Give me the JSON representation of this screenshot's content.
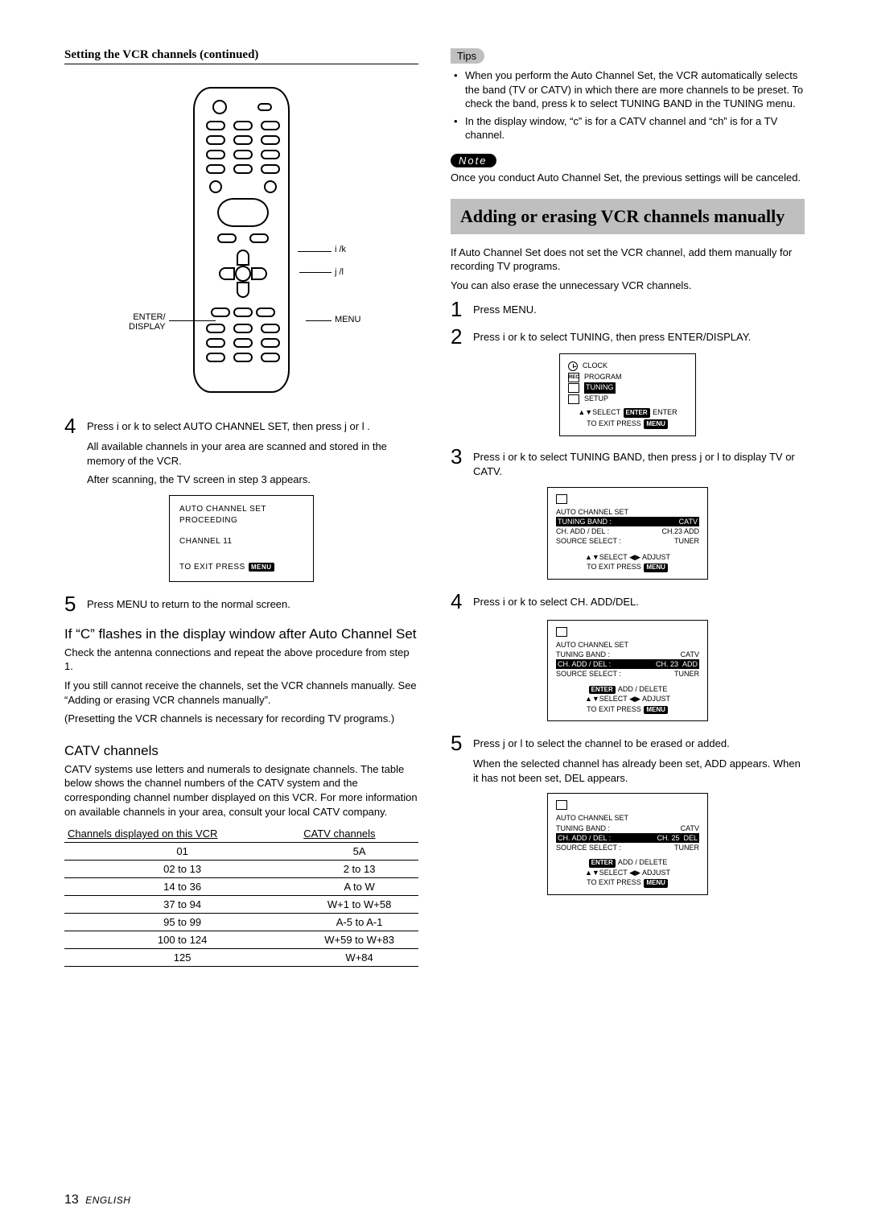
{
  "left": {
    "sectionTitle": "Setting the VCR channels (continued)",
    "remoteLabels": {
      "ik": "i /k",
      "jl": "j /l",
      "menu": "MENU",
      "enter": "ENTER/\nDISPLAY"
    },
    "step4": {
      "num": "4",
      "body": "Press i  or k  to select AUTO CHANNEL SET, then press  j  or l .",
      "sub1": "All available channels in your area are scanned and stored in the memory of the VCR.",
      "sub2": "After scanning, the TV screen in step 3 appears."
    },
    "osd1": {
      "l1": "AUTO  CHANNEL  SET",
      "l2": "PROCEEDING",
      "l3": "CHANNEL  11",
      "l4a": "TO  EXIT  PRESS",
      "l4key": "MENU"
    },
    "step5": {
      "num": "5",
      "body": "Press MENU to return to the normal screen."
    },
    "cflash": {
      "head": "If “C” flashes in the display window after Auto Channel Set",
      "p1": "Check the antenna connections and repeat the above procedure from step 1.",
      "p2": "If you still cannot receive the channels, set the VCR channels manually. See “Adding or erasing VCR channels manually”.",
      "p3": "(Presetting the VCR channels is necessary for recording TV programs.)"
    },
    "catv": {
      "head": "CATV channels",
      "p": "CATV systems use letters and numerals to designate channels. The table below shows the channel numbers of the CATV system and the corresponding channel number displayed on this VCR. For more information on available channels in your area, consult your local CATV company.",
      "th1": "Channels displayed on this VCR",
      "th2": "CATV channels",
      "rows": [
        [
          "01",
          "5A"
        ],
        [
          "02 to 13",
          "2 to 13"
        ],
        [
          "14 to 36",
          "A to W"
        ],
        [
          "37 to 94",
          "W+1 to W+58"
        ],
        [
          "95 to 99",
          "A-5 to A-1"
        ],
        [
          "100 to 124",
          "W+59 to W+83"
        ],
        [
          "125",
          "W+84"
        ]
      ]
    }
  },
  "right": {
    "tipsLabel": "Tips",
    "tips": [
      "When you perform the Auto Channel Set, the VCR automatically selects the band (TV or CATV) in which there are more channels to be preset. To check the band, press k to select TUNING BAND in the TUNING menu.",
      "In the display window, “c” is for a CATV channel and “ch” is for a TV channel."
    ],
    "noteLabel": "Note",
    "note": "Once you conduct Auto Channel Set, the previous settings will be canceled.",
    "banner": "Adding or erasing VCR channels manually",
    "intro1": "If Auto Channel Set does not set the VCR channel, add them manually for recording TV programs.",
    "intro2": "You can also erase the unnecessary VCR channels.",
    "s1": {
      "num": "1",
      "body": "Press MENU."
    },
    "s2": {
      "num": "2",
      "body": "Press i  or k  to select TUNING, then press ENTER/DISPLAY."
    },
    "menuOsd": {
      "items": [
        "CLOCK",
        "PROGRAM",
        "TUNING",
        "SETUP"
      ],
      "foot1a": "SELECT",
      "foot1key1": "ENTER",
      "foot1b": "ENTER",
      "foot2a": "TO  EXIT  PRESS",
      "foot2key": "MENU"
    },
    "s3": {
      "num": "3",
      "body": "Press i  or k  to select TUNING BAND, then press  j  or l  to display TV or CATV."
    },
    "tuneOsd1": {
      "l1": "AUTO  CHANNEL  SET",
      "l2a": "TUNING  BAND :",
      "l2b": "CATV",
      "l3a": "CH.  ADD / DEL :",
      "l3b": "CH.23  ADD",
      "l4a": "SOURCE  SELECT :",
      "l4b": "TUNER",
      "f1pre": "SELECT",
      "f1post": "ADJUST",
      "f2a": "TO  EXIT  PRESS",
      "f2key": "MENU"
    },
    "s4": {
      "num": "4",
      "body": "Press i  or k  to select CH. ADD/DEL."
    },
    "tuneOsd2": {
      "l1": "AUTO  CHANNEL  SET",
      "l2a": "TUNING  BAND :",
      "l2b": "CATV",
      "l3a": "CH. ADD / DEL :",
      "l3b": "CH. 23",
      "l3c": "ADD",
      "l4a": "SOURCE  SELECT :",
      "l4b": "TUNER",
      "e1key": "ENTER",
      "e1": "ADD / DELETE",
      "f1pre": "SELECT",
      "f1post": "ADJUST",
      "f2a": "TO  EXIT  PRESS",
      "f2key": "MENU"
    },
    "s5": {
      "num": "5",
      "body": "Press j  or l  to select the channel to be erased or added.",
      "sub": "When the selected channel has already been set, ADD appears. When it has not been set, DEL appears."
    },
    "tuneOsd3": {
      "l1": "AUTO  CHANNEL  SET",
      "l2a": "TUNING  BAND :",
      "l2b": "CATV",
      "l3a": "CH. ADD / DEL :",
      "l3b": "CH. 25",
      "l3c": "DEL",
      "l4a": "SOURCE  SELECT :",
      "l4b": "TUNER",
      "e1key": "ENTER",
      "e1": "ADD / DELETE",
      "f1pre": "SELECT",
      "f1post": "ADJUST",
      "f2a": "TO  EXIT  PRESS",
      "f2key": "MENU"
    }
  },
  "footer": {
    "page": "13",
    "lang": "ENGLISH"
  }
}
